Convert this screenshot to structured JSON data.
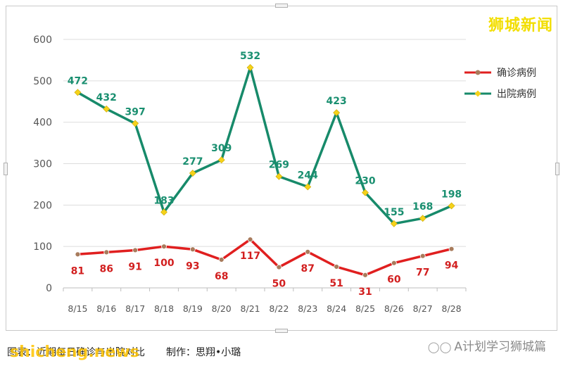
{
  "brand": "狮城新闻",
  "caption": {
    "text": "图表：近期每日确诊与出院对比",
    "maker": "制作：思翔•小璐"
  },
  "watermarks": {
    "left": "shicheng.news",
    "right": "A计划学习狮城篇",
    "right_icon": "wechat-icon"
  },
  "colors": {
    "confirmed": "#e01f1f",
    "discharged": "#178a6a",
    "confirmed_marker": "#a87b5c",
    "discharged_marker": "#f5d21a",
    "confirmed_label": "#d21f1f",
    "discharged_label": "#1a8f70",
    "axis_text": "#555555",
    "grid": "#dddddd"
  },
  "chart_data": {
    "type": "line",
    "title": "",
    "xlabel": "",
    "ylabel": "",
    "categories": [
      "8/15",
      "8/16",
      "8/17",
      "8/18",
      "8/19",
      "8/20",
      "8/21",
      "8/22",
      "8/23",
      "8/24",
      "8/25",
      "8/26",
      "8/27",
      "8/28"
    ],
    "ylim": [
      0,
      600
    ],
    "yticks": [
      0,
      100,
      200,
      300,
      400,
      500,
      600
    ],
    "grid": "horizontal",
    "legend_position": "top-right",
    "series": [
      {
        "name": "确诊病例",
        "values": [
          81,
          86,
          91,
          100,
          93,
          68,
          117,
          50,
          87,
          51,
          31,
          60,
          77,
          94
        ]
      },
      {
        "name": "出院病例",
        "values": [
          472,
          432,
          397,
          183,
          277,
          309,
          532,
          269,
          244,
          423,
          230,
          155,
          168,
          198
        ]
      }
    ]
  }
}
